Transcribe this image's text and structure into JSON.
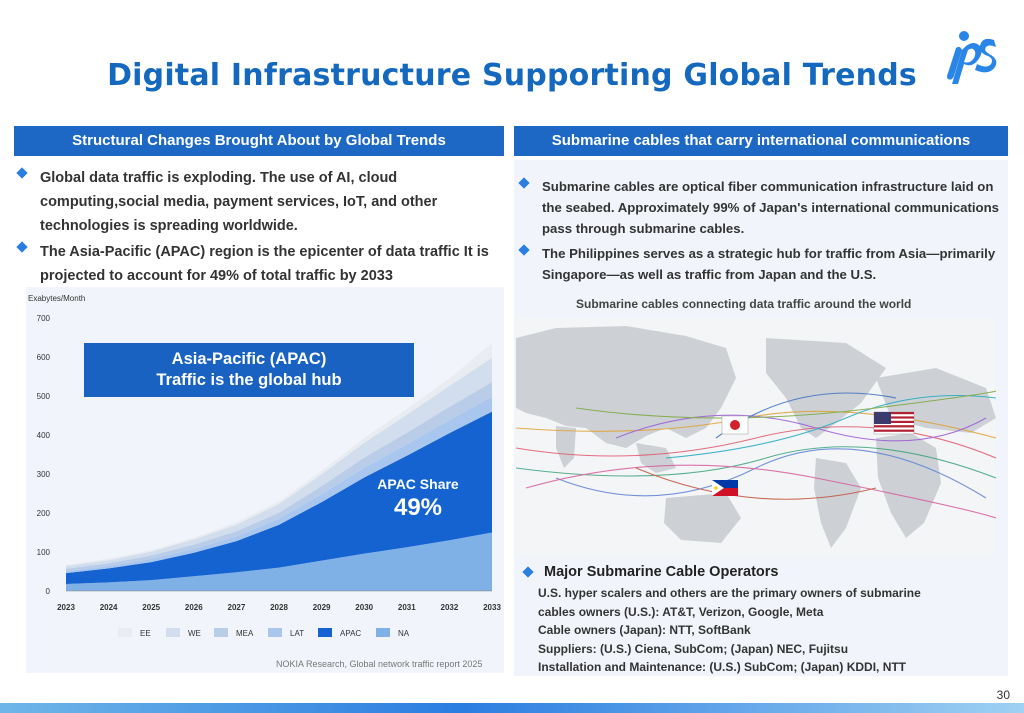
{
  "page": {
    "title": "Digital Infrastructure Supporting Global Trends",
    "logo_text": "ips",
    "page_number": "30"
  },
  "left": {
    "header": "Structural Changes Brought About by Global Trends",
    "bullets": [
      "Global data traffic is exploding. The use of AI, cloud computing,social media, payment services, IoT, and other technologies is spreading worldwide.",
      "The Asia-Pacific (APAC) region is the epicenter of data traffic It is projected to account for 49% of total traffic by 2033"
    ],
    "callout_line1": "Asia-Pacific (APAC)",
    "callout_line2": "Traffic is the global hub",
    "share_label": "APAC Share",
    "share_value": "49%",
    "source": "NOKIA Research, Global network traffic report 2025"
  },
  "right": {
    "header": "Submarine cables that carry international communications",
    "bullets": [
      "Submarine cables are optical fiber communication infrastructure laid on the seabed. Approximately 99% of Japan's international communications pass through submarine cables.",
      "The Philippines serves as a strategic hub for traffic from Asia—primarily Singapore—as well as traffic from Japan and the U.S."
    ],
    "map_caption": "Submarine cables connecting data traffic around the world",
    "operators_header": "Major Submarine Cable Operators",
    "operators_lines": [
      "U.S. hyper scalers and others are the primary owners of submarine",
      "cables owners (U.S.): AT&T, Verizon, Google, Meta",
      "Cable owners (Japan): NTT, SoftBank",
      "Suppliers: (U.S.) Ciena, SubCom; (Japan) NEC, Fujitsu",
      "Installation and Maintenance: (U.S.) SubCom; (Japan) KDDI, NTT"
    ]
  },
  "chart_data": {
    "type": "area",
    "ylabel": "Exabytes/Month",
    "ylim": [
      0,
      700
    ],
    "yticks": [
      0,
      100,
      200,
      300,
      400,
      500,
      600,
      700
    ],
    "x": [
      "2023",
      "2024",
      "2025",
      "2026",
      "2027",
      "2028",
      "2029",
      "2030",
      "2031",
      "2032",
      "2033"
    ],
    "stacked": true,
    "legend_position": "bottom",
    "series": [
      {
        "name": "NA",
        "color": "#7fb0e6",
        "values": [
          18,
          22,
          28,
          38,
          48,
          60,
          78,
          96,
          112,
          130,
          150
        ]
      },
      {
        "name": "APAC",
        "color": "#1463d1",
        "values": [
          28,
          36,
          46,
          60,
          80,
          110,
          150,
          195,
          235,
          275,
          310
        ]
      },
      {
        "name": "LAT",
        "color": "#a8c6ee",
        "values": [
          5,
          6,
          8,
          10,
          12,
          15,
          20,
          25,
          29,
          33,
          38
        ]
      },
      {
        "name": "MEA",
        "color": "#b9cde9",
        "values": [
          6,
          7,
          9,
          11,
          13,
          16,
          21,
          26,
          30,
          34,
          38
        ]
      },
      {
        "name": "WE",
        "color": "#d2dded",
        "values": [
          7,
          8,
          10,
          13,
          17,
          22,
          30,
          38,
          46,
          54,
          62
        ]
      },
      {
        "name": "EE",
        "color": "#e9ecf0",
        "values": [
          3,
          4,
          4,
          5,
          6,
          7,
          9,
          12,
          15,
          19,
          37
        ]
      }
    ]
  },
  "map": {
    "flags": [
      "japan-flag",
      "usa-flag",
      "philippines-flag"
    ],
    "colors": {
      "land": "#cfd3d8",
      "sea": "#f3f4f6"
    }
  }
}
